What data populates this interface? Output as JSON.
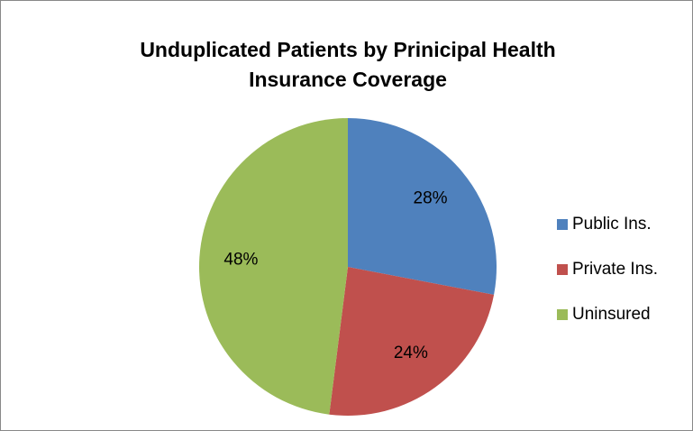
{
  "chart_data": {
    "type": "pie",
    "title": "Unduplicated Patients by Prinicipal Health Insurance Coverage",
    "categories": [
      "Public Ins.",
      "Private Ins.",
      "Uninsured"
    ],
    "values": [
      28,
      24,
      48
    ],
    "value_labels": [
      "28%",
      "24%",
      "48%"
    ],
    "colors": [
      "#4f81bd",
      "#c0504d",
      "#9bbb59"
    ],
    "legend": "right"
  }
}
